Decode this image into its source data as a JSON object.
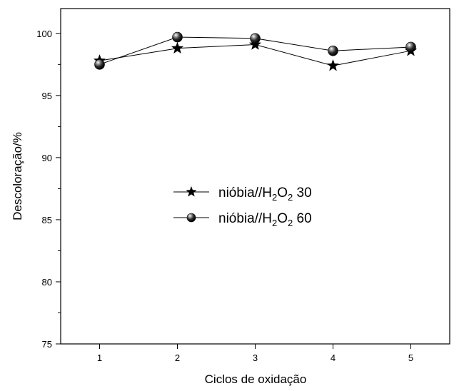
{
  "chart_data": {
    "type": "line",
    "xlabel": "Ciclos de oxidação",
    "ylabel": "Descoloração/%",
    "xlim": [
      0.5,
      5.5
    ],
    "ylim": [
      75,
      102
    ],
    "x": [
      1,
      2,
      3,
      4,
      5
    ],
    "x_ticks": [
      "1",
      "2",
      "3",
      "4",
      "5"
    ],
    "y_ticks": [
      "75",
      "80",
      "85",
      "90",
      "95",
      "100"
    ],
    "grid": false,
    "legend_placement": "center",
    "series": [
      {
        "name_parts": [
          "nióbia//H",
          "2",
          "O",
          "2",
          " 30"
        ],
        "marker": "star",
        "values": [
          97.8,
          98.8,
          99.1,
          97.4,
          98.6
        ]
      },
      {
        "name_parts": [
          "nióbia//H",
          "2",
          "O",
          "2",
          " 60"
        ],
        "marker": "sphere",
        "values": [
          97.5,
          99.7,
          99.6,
          98.6,
          98.9
        ]
      }
    ]
  }
}
